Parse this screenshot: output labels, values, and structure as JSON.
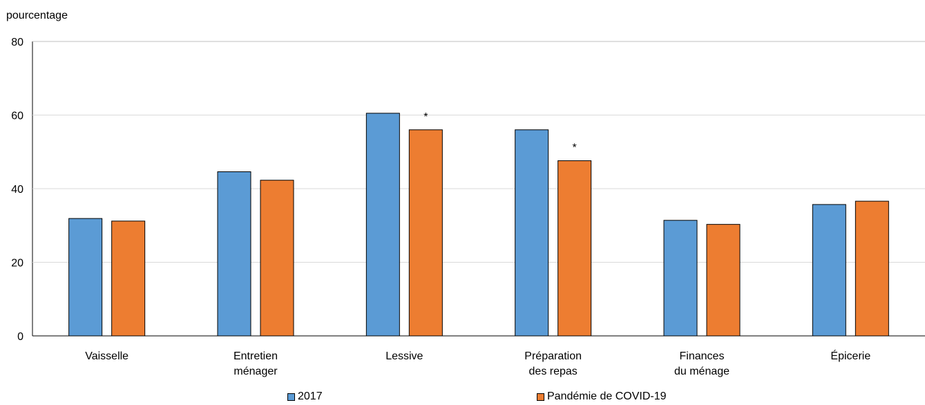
{
  "chart_data": {
    "type": "bar",
    "ylabel": "pourcentage",
    "ylim": [
      0,
      80
    ],
    "yticks": [
      0,
      20,
      40,
      60,
      80
    ],
    "grid": true,
    "legend_position": "bottom",
    "categories": [
      [
        "Vaisselle"
      ],
      [
        "Entretien",
        "ménager"
      ],
      [
        "Lessive"
      ],
      [
        "Préparation",
        "des repas"
      ],
      [
        "Finances",
        "du ménage"
      ],
      [
        "Épicerie"
      ]
    ],
    "series": [
      {
        "name": "2017",
        "color": "#5b9bd5",
        "values": [
          31.9,
          44.6,
          60.5,
          56.0,
          31.4,
          35.7
        ]
      },
      {
        "name": "Pandémie de COVID-19",
        "color": "#ed7d31",
        "values": [
          31.2,
          42.3,
          56.0,
          47.6,
          30.3,
          36.6
        ],
        "annotations": [
          "",
          "",
          "*",
          "*",
          "",
          ""
        ]
      }
    ]
  }
}
